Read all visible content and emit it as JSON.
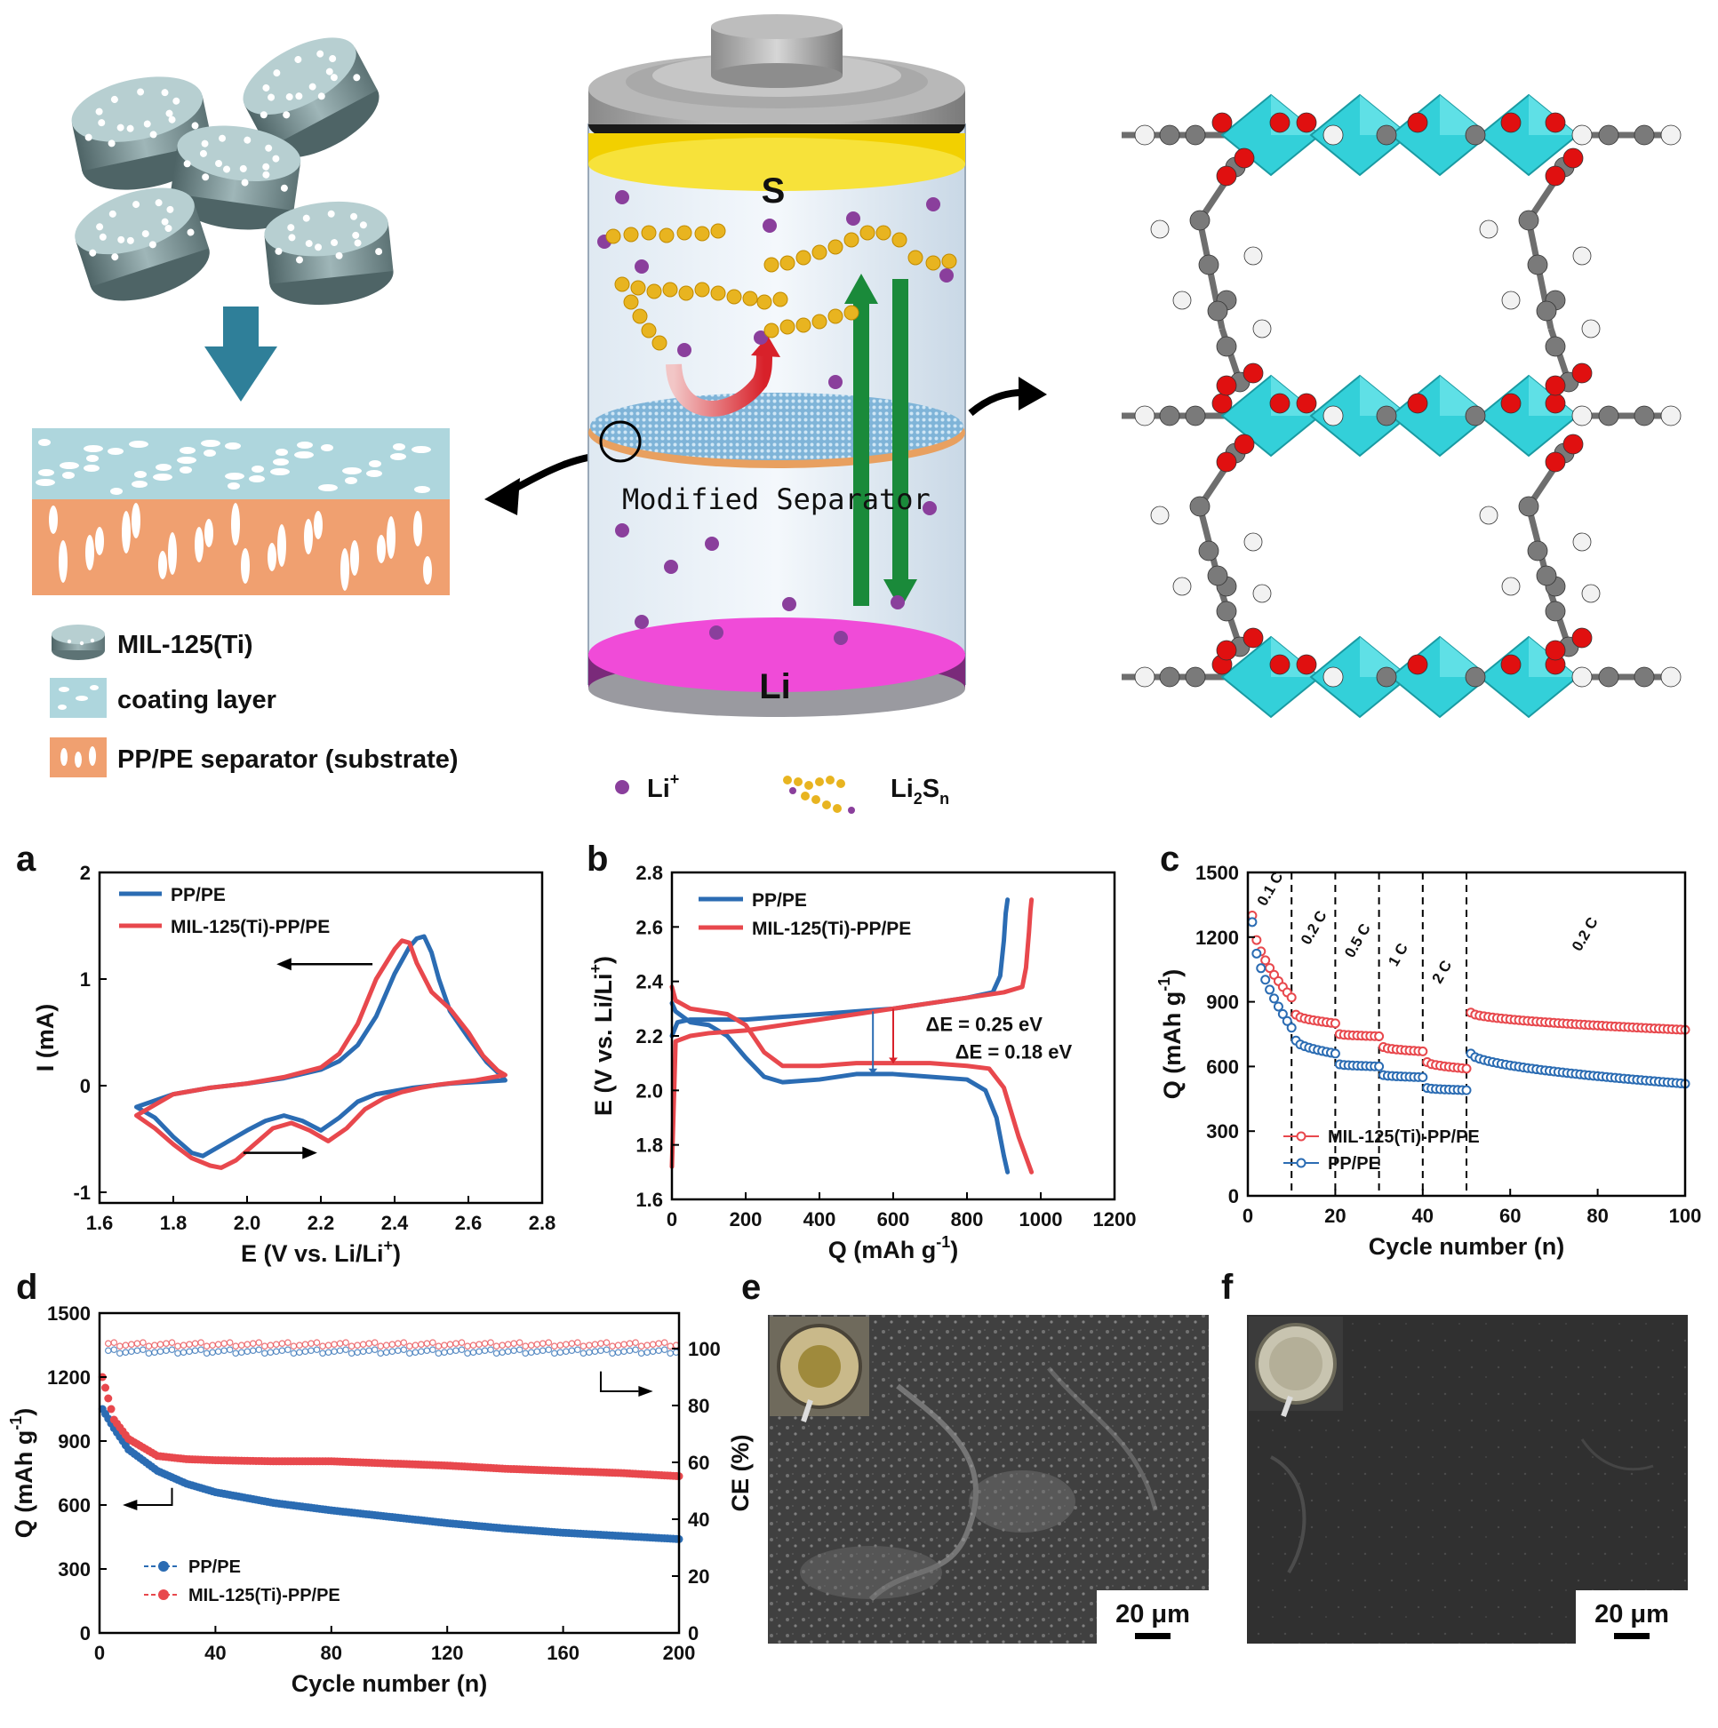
{
  "schematic": {
    "legend": {
      "mil": "MIL-125(Ti)",
      "coating": "coating layer",
      "substrate": "PP/PE separator (substrate)"
    },
    "battery": {
      "sulfur_label": "S",
      "lithium_label": "Li",
      "separator_label": "Modified Separator",
      "li_ion_label": "Li",
      "li_ion_superscript": "+",
      "polysulfide_main": "Li",
      "polysulfide_sub1": "2",
      "polysulfide_mid": "S",
      "polysulfide_sub2": "n"
    }
  },
  "panels": {
    "a": "a",
    "b": "b",
    "c": "c",
    "d": "d",
    "e": "e",
    "f": "f"
  },
  "sem": {
    "e_scale": "20 μm",
    "f_scale": "20 μm"
  },
  "colors": {
    "blue": "#2b6cb3",
    "red": "#e8484d",
    "cyan": "#33d0d9",
    "gold": "#e8b420",
    "li_ion": "#8a3f9c",
    "lithium": "#f04bd8",
    "arrow_green": "#1a8a3a",
    "coating": "#aed6dd",
    "substrate": "#f0a070"
  },
  "chart_data": [
    {
      "panel": "a",
      "type": "line",
      "xlabel_main": "E (V vs. Li/Li",
      "xlabel_sup": "+",
      "xlabel_end": ")",
      "ylabel": "I (mA)",
      "xlim": [
        1.6,
        2.8
      ],
      "ylim": [
        -1.1,
        2.0
      ],
      "xticks": [
        "1.6",
        "1.8",
        "2.0",
        "2.2",
        "2.4",
        "2.6",
        "2.8"
      ],
      "yticks": [
        "-1",
        "0",
        "1",
        "2"
      ],
      "series": [
        {
          "name": "PP/PE",
          "color": "#2b6cb3",
          "x": [
            1.7,
            1.75,
            1.8,
            1.85,
            1.88,
            1.92,
            2.0,
            2.05,
            2.1,
            2.15,
            2.2,
            2.25,
            2.3,
            2.35,
            2.4,
            2.45,
            2.5,
            2.55,
            2.6,
            2.65,
            2.7,
            2.69,
            2.65,
            2.6,
            2.55,
            2.52,
            2.5,
            2.48,
            2.46,
            2.44,
            2.4,
            2.35,
            2.3,
            2.25,
            2.2,
            2.1,
            2.0,
            1.9,
            1.8,
            1.7
          ],
          "y": [
            -0.2,
            -0.3,
            -0.48,
            -0.63,
            -0.66,
            -0.58,
            -0.42,
            -0.33,
            -0.28,
            -0.33,
            -0.42,
            -0.3,
            -0.15,
            -0.08,
            -0.05,
            -0.02,
            0.0,
            0.02,
            0.03,
            0.04,
            0.05,
            0.09,
            0.22,
            0.45,
            0.7,
            1.0,
            1.25,
            1.4,
            1.38,
            1.3,
            1.05,
            0.65,
            0.38,
            0.23,
            0.15,
            0.07,
            0.02,
            -0.02,
            -0.08,
            -0.2
          ]
        },
        {
          "name": "MIL-125(Ti)-PP/PE",
          "color": "#e8484d",
          "x": [
            1.7,
            1.75,
            1.8,
            1.85,
            1.9,
            1.93,
            1.97,
            2.02,
            2.07,
            2.12,
            2.17,
            2.22,
            2.27,
            2.32,
            2.37,
            2.42,
            2.47,
            2.52,
            2.57,
            2.62,
            2.7,
            2.68,
            2.64,
            2.6,
            2.55,
            2.5,
            2.46,
            2.44,
            2.42,
            2.4,
            2.35,
            2.3,
            2.25,
            2.2,
            2.1,
            2.0,
            1.9,
            1.8,
            1.7
          ],
          "y": [
            -0.28,
            -0.4,
            -0.55,
            -0.68,
            -0.75,
            -0.77,
            -0.7,
            -0.55,
            -0.4,
            -0.35,
            -0.42,
            -0.52,
            -0.4,
            -0.22,
            -0.12,
            -0.06,
            -0.02,
            0.01,
            0.03,
            0.05,
            0.1,
            0.14,
            0.28,
            0.5,
            0.72,
            0.88,
            1.15,
            1.34,
            1.36,
            1.28,
            1.0,
            0.58,
            0.3,
            0.17,
            0.08,
            0.02,
            -0.02,
            -0.08,
            -0.28
          ]
        }
      ],
      "annotations": {
        "scan_arrows": 2
      }
    },
    {
      "panel": "b",
      "type": "line",
      "xlabel_main": "Q (mAh g",
      "xlabel_sup": "-1",
      "xlabel_end": ")",
      "ylabel_main": "E (V vs. Li/Li",
      "ylabel_sup": "+",
      "ylabel_end": ")",
      "xlim": [
        0,
        1200
      ],
      "ylim": [
        1.6,
        2.8
      ],
      "xticks": [
        "0",
        "200",
        "400",
        "600",
        "800",
        "1000",
        "1200"
      ],
      "yticks": [
        "1.6",
        "1.8",
        "2.0",
        "2.2",
        "2.4",
        "2.6",
        "2.8"
      ],
      "series": [
        {
          "name": "PP/PE",
          "color": "#2b6cb3",
          "kind": "discharge",
          "x": [
            0,
            10,
            50,
            100,
            150,
            200,
            250,
            300,
            400,
            500,
            600,
            700,
            800,
            850,
            880,
            900,
            910
          ],
          "y": [
            2.32,
            2.29,
            2.25,
            2.24,
            2.2,
            2.12,
            2.05,
            2.03,
            2.04,
            2.06,
            2.06,
            2.05,
            2.04,
            2.0,
            1.9,
            1.76,
            1.7
          ]
        },
        {
          "name": "PP/PE",
          "color": "#2b6cb3",
          "kind": "charge",
          "x": [
            0,
            15,
            50,
            100,
            200,
            300,
            400,
            500,
            600,
            700,
            800,
            870,
            890,
            900,
            905,
            910
          ],
          "y": [
            2.2,
            2.25,
            2.26,
            2.26,
            2.26,
            2.27,
            2.28,
            2.29,
            2.3,
            2.32,
            2.34,
            2.36,
            2.42,
            2.55,
            2.65,
            2.7
          ]
        },
        {
          "name": "MIL-125(Ti)-PP/PE",
          "color": "#e8484d",
          "kind": "discharge",
          "x": [
            0,
            10,
            50,
            100,
            150,
            200,
            250,
            300,
            400,
            500,
            600,
            700,
            800,
            860,
            900,
            940,
            975
          ],
          "y": [
            2.38,
            2.33,
            2.3,
            2.29,
            2.28,
            2.24,
            2.14,
            2.09,
            2.09,
            2.1,
            2.1,
            2.1,
            2.09,
            2.08,
            2.01,
            1.83,
            1.7
          ]
        },
        {
          "name": "MIL-125(Ti)-PP/PE",
          "color": "#e8484d",
          "kind": "charge",
          "x": [
            0,
            10,
            50,
            100,
            200,
            300,
            400,
            500,
            600,
            700,
            800,
            900,
            950,
            960,
            968,
            972,
            975
          ],
          "y": [
            1.72,
            2.18,
            2.2,
            2.21,
            2.22,
            2.24,
            2.26,
            2.28,
            2.3,
            2.32,
            2.34,
            2.36,
            2.38,
            2.45,
            2.58,
            2.66,
            2.7
          ]
        }
      ],
      "annotations": [
        {
          "text": "ΔE = 0.25 eV",
          "color": "#2b6cb3"
        },
        {
          "text": "ΔE = 0.18 eV",
          "color": "#e8484d"
        }
      ]
    },
    {
      "panel": "c",
      "type": "scatter",
      "xlabel": "Cycle number (n)",
      "ylabel_main": "Q (mAh g",
      "ylabel_sup": "-1",
      "ylabel_end": ")",
      "xlim": [
        0,
        100
      ],
      "ylim": [
        0,
        1500
      ],
      "xticks": [
        "0",
        "20",
        "40",
        "60",
        "80",
        "100"
      ],
      "yticks": [
        "0",
        "300",
        "600",
        "900",
        "1200",
        "1500"
      ],
      "rate_labels": [
        "0.1 C",
        "0.2 C",
        "0.5 C",
        "1 C",
        "2 C",
        "0.2 C"
      ],
      "dividers": [
        10,
        20,
        30,
        40,
        50
      ],
      "series": [
        {
          "name": "MIL-125(Ti)-PP/PE",
          "color": "#e8484d",
          "segments": [
            {
              "start": 1,
              "end": 10,
              "from": 1300,
              "to": 920
            },
            {
              "start": 11,
              "end": 20,
              "from": 840,
              "to": 800
            },
            {
              "start": 21,
              "end": 30,
              "from": 750,
              "to": 740
            },
            {
              "start": 31,
              "end": 40,
              "from": 690,
              "to": 670
            },
            {
              "start": 41,
              "end": 50,
              "from": 620,
              "to": 590
            },
            {
              "start": 51,
              "end": 100,
              "from": 850,
              "to": 770
            }
          ]
        },
        {
          "name": "PP/PE",
          "color": "#2b6cb3",
          "segments": [
            {
              "start": 1,
              "end": 10,
              "from": 1270,
              "to": 780
            },
            {
              "start": 11,
              "end": 20,
              "from": 720,
              "to": 660
            },
            {
              "start": 21,
              "end": 30,
              "from": 610,
              "to": 600
            },
            {
              "start": 31,
              "end": 40,
              "from": 560,
              "to": 550
            },
            {
              "start": 41,
              "end": 50,
              "from": 500,
              "to": 490
            },
            {
              "start": 51,
              "end": 100,
              "from": 660,
              "to": 520
            }
          ]
        }
      ]
    },
    {
      "panel": "d",
      "type": "scatter",
      "xlabel": "Cycle number (n)",
      "ylabel_main": "Q (mAh g",
      "ylabel_sup": "-1",
      "ylabel_end": ")",
      "ylabel_right": "CE (%)",
      "xlim": [
        0,
        200
      ],
      "ylim": [
        0,
        1500
      ],
      "ylim_right": [
        0,
        112.5
      ],
      "xticks": [
        "0",
        "40",
        "80",
        "120",
        "160",
        "200"
      ],
      "yticks": [
        "0",
        "300",
        "600",
        "900",
        "1200",
        "1500"
      ],
      "yticks_right": [
        "0",
        "20",
        "40",
        "60",
        "80",
        "100"
      ],
      "series": [
        {
          "name": "PP/PE",
          "color": "#2b6cb3",
          "x": [
            1,
            5,
            10,
            20,
            30,
            40,
            60,
            80,
            100,
            120,
            140,
            160,
            180,
            200
          ],
          "y": [
            1050,
            960,
            860,
            760,
            700,
            660,
            610,
            575,
            545,
            515,
            490,
            470,
            455,
            440
          ]
        },
        {
          "name": "MIL-125(Ti)-PP/PE",
          "color": "#e8484d",
          "x": [
            1,
            5,
            10,
            20,
            30,
            40,
            60,
            80,
            100,
            120,
            140,
            160,
            180,
            200
          ],
          "y": [
            1200,
            1000,
            910,
            830,
            815,
            810,
            805,
            805,
            795,
            785,
            770,
            760,
            750,
            735
          ]
        },
        {
          "name": "PP/PE CE",
          "color": "#2b6cb3",
          "axis": "right",
          "value": 99.0
        },
        {
          "name": "MIL-125(Ti)-PP/PE CE",
          "color": "#e8484d",
          "axis": "right",
          "value": 101.5
        }
      ]
    }
  ]
}
